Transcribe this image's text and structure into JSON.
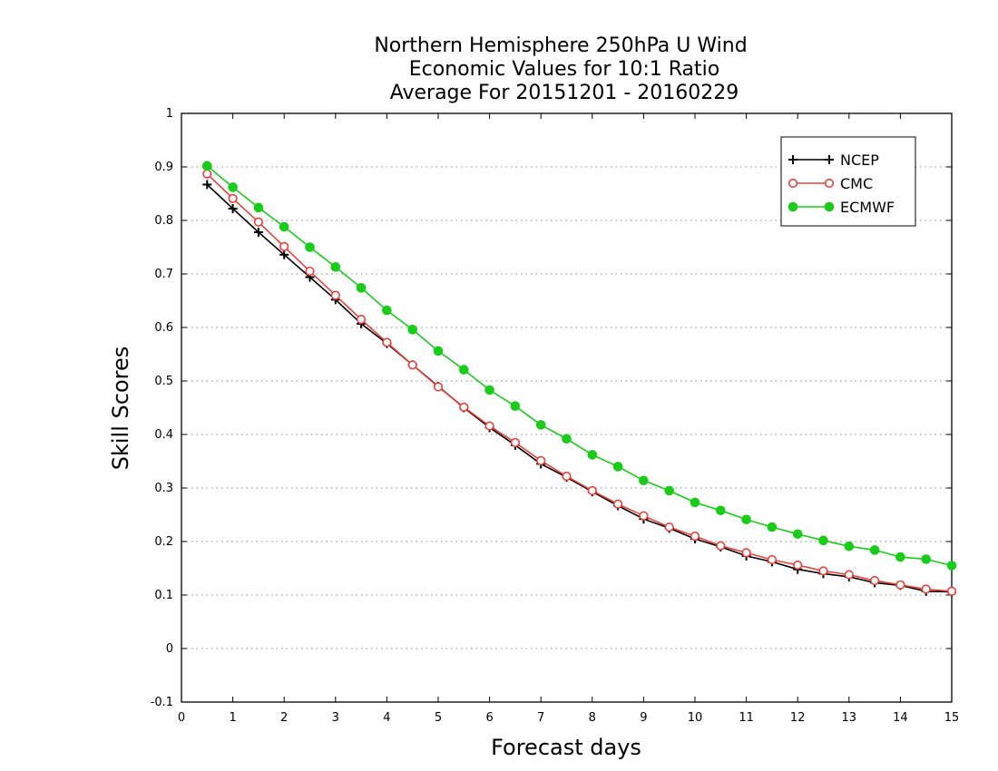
{
  "chart_data": {
    "type": "line",
    "title_lines": [
      "Northern Hemisphere 250hPa U Wind",
      "Economic Values for 10:1 Ratio",
      "Average For 20151201 - 20160229"
    ],
    "xlabel": "Forecast days",
    "ylabel": "Skill Scores",
    "xlim": [
      0,
      15
    ],
    "ylim": [
      -0.1,
      1
    ],
    "x_ticks": [
      "0",
      "1",
      "2",
      "3",
      "4",
      "5",
      "6",
      "7",
      "8",
      "9",
      "10",
      "11",
      "12",
      "13",
      "14",
      "15"
    ],
    "y_ticks": [
      "-0.1",
      "0",
      "0.1",
      "0.2",
      "0.3",
      "0.4",
      "0.5",
      "0.6",
      "0.7",
      "0.8",
      "0.9",
      "1"
    ],
    "grid": true,
    "legend_position": "top-right",
    "x": [
      0.5,
      1,
      1.5,
      2,
      2.5,
      3,
      3.5,
      4,
      4.5,
      5,
      5.5,
      6,
      6.5,
      7,
      7.5,
      8,
      8.5,
      9,
      9.5,
      10,
      10.5,
      11,
      11.5,
      12,
      12.5,
      13,
      13.5,
      14,
      14.5,
      15
    ],
    "series": [
      {
        "name": "NCEP",
        "color": "#000000",
        "marker": "plus",
        "values": [
          0.867,
          0.822,
          0.778,
          0.736,
          0.694,
          0.652,
          0.607,
          0.57,
          0.53,
          0.49,
          0.45,
          0.413,
          0.38,
          0.345,
          0.32,
          0.293,
          0.267,
          0.242,
          0.225,
          0.205,
          0.19,
          0.173,
          0.162,
          0.148,
          0.14,
          0.134,
          0.123,
          0.118,
          0.107,
          0.106
        ]
      },
      {
        "name": "CMC",
        "color": "#e8403a",
        "marker": "open-circle",
        "values": [
          0.887,
          0.841,
          0.797,
          0.751,
          0.705,
          0.66,
          0.615,
          0.572,
          0.53,
          0.489,
          0.451,
          0.416,
          0.385,
          0.351,
          0.322,
          0.295,
          0.27,
          0.248,
          0.227,
          0.21,
          0.192,
          0.179,
          0.166,
          0.156,
          0.145,
          0.138,
          0.127,
          0.119,
          0.111,
          0.107
        ]
      },
      {
        "name": "ECMWF",
        "color": "#19cc19",
        "marker": "filled-circle",
        "values": [
          0.902,
          0.862,
          0.824,
          0.788,
          0.75,
          0.713,
          0.674,
          0.632,
          0.596,
          0.556,
          0.521,
          0.483,
          0.453,
          0.418,
          0.392,
          0.362,
          0.34,
          0.314,
          0.295,
          0.273,
          0.258,
          0.241,
          0.227,
          0.214,
          0.202,
          0.191,
          0.184,
          0.171,
          0.167,
          0.155
        ]
      }
    ]
  }
}
